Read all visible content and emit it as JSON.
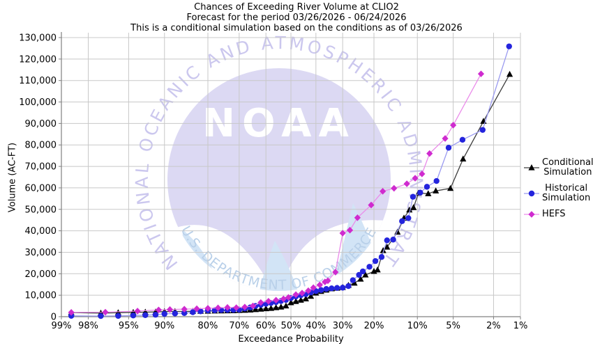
{
  "title": {
    "line1": "Chances of Exceeding River Volume at CLIO2",
    "line2": "Forecast for the period 03/26/2026 - 06/24/2026",
    "line3": "This is a conditional simulation based on the conditions as of 03/26/2026"
  },
  "watermark": {
    "ring_text": "NATIONAL OCEANIC AND ATMOSPHERIC ADMINISTRATION",
    "bottom_text": "U.S. DEPARTMENT OF COMMERCE",
    "acronym": "NOAA",
    "lavender": "#dcd9f3",
    "light_blue": "#d2e4f6",
    "ring_text_color": "#cbc7ee",
    "bottom_text_color": "#b9d0e9"
  },
  "axes": {
    "x_label": "Exceedance Probability",
    "y_label": "Volume (AC-FT)",
    "grid_color": "#c8c8c8",
    "spine_color": "#808080",
    "x_ticks": [
      {
        "label": "99%",
        "value": 99
      },
      {
        "label": "98%",
        "value": 98
      },
      {
        "label": "95%",
        "value": 95
      },
      {
        "label": "90%",
        "value": 90
      },
      {
        "label": "80%",
        "value": 80
      },
      {
        "label": "70%",
        "value": 70
      },
      {
        "label": "60%",
        "value": 60
      },
      {
        "label": "50%",
        "value": 50
      },
      {
        "label": "40%",
        "value": 40
      },
      {
        "label": "30%",
        "value": 30
      },
      {
        "label": "20%",
        "value": 20
      },
      {
        "label": "10%",
        "value": 10
      },
      {
        "label": "5%",
        "value": 5
      },
      {
        "label": "2%",
        "value": 2
      },
      {
        "label": "1%",
        "value": 1
      }
    ],
    "y_ticks": [
      {
        "label": "0",
        "value": 0
      },
      {
        "label": "10,000",
        "value": 10000
      },
      {
        "label": "20,000",
        "value": 20000
      },
      {
        "label": "30,000",
        "value": 30000
      },
      {
        "label": "40,000",
        "value": 40000
      },
      {
        "label": "50,000",
        "value": 50000
      },
      {
        "label": "60,000",
        "value": 60000
      },
      {
        "label": "70,000",
        "value": 70000
      },
      {
        "label": "80,000",
        "value": 80000
      },
      {
        "label": "90,000",
        "value": 90000
      },
      {
        "label": "100,000",
        "value": 100000
      },
      {
        "label": "110,000",
        "value": 110000
      },
      {
        "label": "120,000",
        "value": 120000
      },
      {
        "label": "130,000",
        "value": 130000
      }
    ]
  },
  "chart_data": {
    "type": "line",
    "title": "Chances of Exceeding River Volume at CLIO2",
    "xlabel": "Exceedance Probability",
    "ylabel": "Volume (AC-FT)",
    "x_scale": "probit",
    "x_units": "percent_exceedance",
    "x_range": [
      99,
      1
    ],
    "y_range": [
      0,
      130000
    ],
    "grid": true,
    "legend_position": "right",
    "series": [
      {
        "name": "Conditional Simulation",
        "legend_label": "Conditional\nSimulation",
        "marker": "triangle",
        "color": "#000000",
        "line_color": "#3c3c3c",
        "points": [
          [
            98.7,
            1900
          ],
          [
            97.3,
            1650
          ],
          [
            96,
            1850
          ],
          [
            94.5,
            2000
          ],
          [
            93,
            2100
          ],
          [
            91.5,
            2200
          ],
          [
            90,
            2370
          ],
          [
            88,
            2430
          ],
          [
            86,
            2470
          ],
          [
            84,
            2500
          ],
          [
            82,
            2550
          ],
          [
            80,
            2600
          ],
          [
            78,
            2650
          ],
          [
            76,
            2700
          ],
          [
            74,
            2750
          ],
          [
            72,
            2800
          ],
          [
            70,
            2900
          ],
          [
            68,
            3000
          ],
          [
            66,
            3100
          ],
          [
            64,
            3300
          ],
          [
            62,
            3500
          ],
          [
            60,
            3700
          ],
          [
            58,
            3900
          ],
          [
            56,
            4200
          ],
          [
            54,
            4500
          ],
          [
            52,
            5000
          ],
          [
            50,
            6500
          ],
          [
            48,
            7100
          ],
          [
            46,
            7700
          ],
          [
            44,
            8300
          ],
          [
            42,
            9500
          ],
          [
            40,
            11000
          ],
          [
            38,
            11800
          ],
          [
            36,
            12400
          ],
          [
            34,
            13000
          ],
          [
            32,
            13300
          ],
          [
            30,
            13600
          ],
          [
            28,
            14600
          ],
          [
            26,
            15650
          ],
          [
            24,
            17500
          ],
          [
            22.5,
            19450
          ],
          [
            20,
            21100
          ],
          [
            19,
            21800
          ],
          [
            17.5,
            30800
          ],
          [
            16.5,
            32400
          ],
          [
            14,
            39400
          ],
          [
            12.6,
            45900
          ],
          [
            11.5,
            49700
          ],
          [
            10.7,
            50800
          ],
          [
            9.8,
            57600
          ],
          [
            8.2,
            57300
          ],
          [
            7.1,
            58600
          ],
          [
            5.3,
            59750
          ],
          [
            4.05,
            73450
          ],
          [
            2.55,
            91000
          ],
          [
            1.33,
            112900
          ]
        ]
      },
      {
        "name": "Historical Simulation",
        "legend_label": "Historical\nSimulation",
        "marker": "circle",
        "color": "#2424dd",
        "line_color": "#9a9af0",
        "points": [
          [
            98.7,
            400
          ],
          [
            97.3,
            300
          ],
          [
            96,
            350
          ],
          [
            94.5,
            550
          ],
          [
            93,
            700
          ],
          [
            91.5,
            900
          ],
          [
            90,
            1300
          ],
          [
            88,
            1500
          ],
          [
            86,
            1700
          ],
          [
            84,
            2100
          ],
          [
            82,
            2500
          ],
          [
            80,
            2900
          ],
          [
            78,
            3000
          ],
          [
            76,
            3100
          ],
          [
            74,
            3150
          ],
          [
            72,
            3200
          ],
          [
            70,
            3300
          ],
          [
            68,
            3800
          ],
          [
            66,
            4300
          ],
          [
            64,
            5000
          ],
          [
            62,
            5500
          ],
          [
            60,
            6000
          ],
          [
            58,
            6400
          ],
          [
            56,
            6800
          ],
          [
            54,
            7300
          ],
          [
            52,
            7800
          ],
          [
            50,
            8650
          ],
          [
            48,
            9400
          ],
          [
            46,
            10000
          ],
          [
            44,
            10500
          ],
          [
            42,
            11300
          ],
          [
            40,
            11900
          ],
          [
            38,
            12400
          ],
          [
            36,
            12900
          ],
          [
            34,
            13200
          ],
          [
            32,
            13400
          ],
          [
            30,
            13500
          ],
          [
            28,
            14250
          ],
          [
            26.5,
            17000
          ],
          [
            24.5,
            19450
          ],
          [
            23.3,
            21100
          ],
          [
            21.3,
            23250
          ],
          [
            19.6,
            25900
          ],
          [
            17.9,
            27800
          ],
          [
            16.5,
            35550
          ],
          [
            15,
            35900
          ],
          [
            13,
            44500
          ],
          [
            11.7,
            45900
          ],
          [
            10.8,
            55850
          ],
          [
            9.5,
            57800
          ],
          [
            8.4,
            60500
          ],
          [
            7,
            63200
          ],
          [
            5.5,
            78700
          ],
          [
            4.1,
            82400
          ],
          [
            2.6,
            87000
          ],
          [
            1.35,
            125900
          ]
        ]
      },
      {
        "name": "HEFS",
        "legend_label": "HEFS",
        "marker": "diamond",
        "color": "#cf2bcf",
        "line_color": "#ea8cea",
        "points": [
          [
            98.7,
            2000
          ],
          [
            97,
            2100
          ],
          [
            94,
            2600
          ],
          [
            91,
            3150
          ],
          [
            89,
            3340
          ],
          [
            86,
            3500
          ],
          [
            83,
            3700
          ],
          [
            80,
            3900
          ],
          [
            77,
            4100
          ],
          [
            74,
            4300
          ],
          [
            71,
            4200
          ],
          [
            68,
            4500
          ],
          [
            65,
            5000
          ],
          [
            62,
            6600
          ],
          [
            59,
            7200
          ],
          [
            56,
            7700
          ],
          [
            53,
            8300
          ],
          [
            51,
            9000
          ],
          [
            48,
            10280
          ],
          [
            45.5,
            11000
          ],
          [
            43,
            12100
          ],
          [
            41,
            13500
          ],
          [
            38.5,
            14800
          ],
          [
            36.5,
            16200
          ],
          [
            35.4,
            16750
          ],
          [
            32.6,
            20750
          ],
          [
            30,
            38900
          ],
          [
            27.5,
            40300
          ],
          [
            25,
            46100
          ],
          [
            20.8,
            52000
          ],
          [
            17.6,
            58400
          ],
          [
            14.8,
            59800
          ],
          [
            12,
            61900
          ],
          [
            10.4,
            64500
          ],
          [
            9.2,
            66500
          ],
          [
            8,
            76000
          ],
          [
            5.9,
            83000
          ],
          [
            5,
            89200
          ],
          [
            2.7,
            113100
          ]
        ]
      }
    ]
  }
}
